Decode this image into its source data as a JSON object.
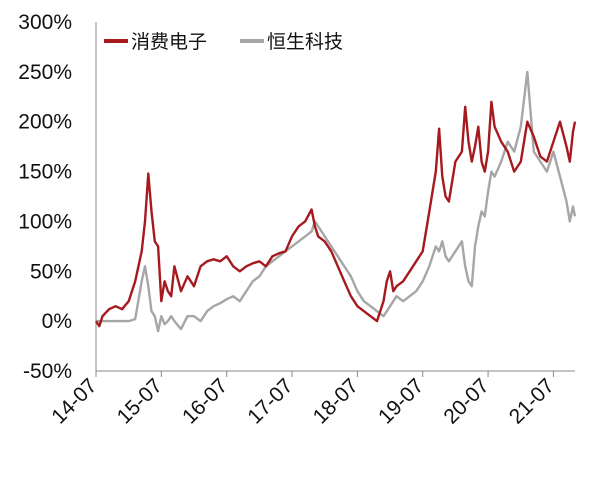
{
  "chart_data": {
    "type": "line",
    "title": "",
    "xlabel": "",
    "ylabel": "",
    "ylim": [
      -50,
      300
    ],
    "yticks": [
      -50,
      0,
      50,
      100,
      150,
      200,
      250,
      300
    ],
    "ytick_labels": [
      "-50%",
      "0%",
      "50%",
      "100%",
      "150%",
      "200%",
      "250%",
      "300%"
    ],
    "xlim": [
      2014.5,
      2021.83
    ],
    "xticks": [
      2014.5,
      2015.5,
      2016.5,
      2017.5,
      2018.5,
      2019.5,
      2020.5,
      2021.5
    ],
    "xtick_labels": [
      "14-07",
      "15-07",
      "16-07",
      "17-07",
      "18-07",
      "19-07",
      "20-07",
      "21-07"
    ],
    "grid": false,
    "legend_position": "top-left",
    "series": [
      {
        "name": "消费电子",
        "color": "#A6191E",
        "x": [
          2014.5,
          2014.55,
          2014.6,
          2014.7,
          2014.8,
          2014.9,
          2015.0,
          2015.1,
          2015.2,
          2015.25,
          2015.3,
          2015.35,
          2015.4,
          2015.45,
          2015.5,
          2015.55,
          2015.6,
          2015.65,
          2015.7,
          2015.8,
          2015.9,
          2016.0,
          2016.1,
          2016.2,
          2016.3,
          2016.4,
          2016.5,
          2016.6,
          2016.7,
          2016.8,
          2016.9,
          2017.0,
          2017.1,
          2017.2,
          2017.3,
          2017.4,
          2017.5,
          2017.6,
          2017.7,
          2017.8,
          2017.85,
          2017.9,
          2018.0,
          2018.1,
          2018.2,
          2018.3,
          2018.4,
          2018.5,
          2018.6,
          2018.7,
          2018.8,
          2018.9,
          2018.95,
          2019.0,
          2019.05,
          2019.1,
          2019.2,
          2019.3,
          2019.4,
          2019.5,
          2019.6,
          2019.7,
          2019.75,
          2019.8,
          2019.85,
          2019.9,
          2020.0,
          2020.1,
          2020.15,
          2020.2,
          2020.25,
          2020.3,
          2020.35,
          2020.4,
          2020.45,
          2020.5,
          2020.55,
          2020.6,
          2020.7,
          2020.8,
          2020.9,
          2021.0,
          2021.1,
          2021.2,
          2021.3,
          2021.4,
          2021.5,
          2021.6,
          2021.7,
          2021.75,
          2021.8,
          2021.83
        ],
        "values": [
          0,
          -5,
          5,
          12,
          15,
          12,
          20,
          40,
          70,
          100,
          148,
          110,
          80,
          75,
          20,
          40,
          30,
          25,
          55,
          30,
          45,
          35,
          55,
          60,
          62,
          60,
          65,
          55,
          50,
          55,
          58,
          60,
          55,
          65,
          68,
          70,
          85,
          95,
          100,
          112,
          95,
          85,
          80,
          70,
          55,
          40,
          25,
          15,
          10,
          5,
          0,
          20,
          40,
          50,
          30,
          35,
          40,
          50,
          60,
          70,
          110,
          150,
          193,
          145,
          125,
          120,
          160,
          170,
          215,
          180,
          160,
          175,
          195,
          160,
          150,
          170,
          220,
          195,
          180,
          170,
          150,
          160,
          200,
          185,
          165,
          160,
          180,
          200,
          175,
          160,
          190,
          200
        ]
      },
      {
        "name": "恒生科技",
        "color": "#A6A6A6",
        "x": [
          2014.5,
          2014.6,
          2014.7,
          2014.8,
          2014.9,
          2015.0,
          2015.1,
          2015.2,
          2015.25,
          2015.3,
          2015.35,
          2015.4,
          2015.45,
          2015.5,
          2015.55,
          2015.6,
          2015.65,
          2015.7,
          2015.8,
          2015.9,
          2016.0,
          2016.1,
          2016.2,
          2016.3,
          2016.4,
          2016.5,
          2016.6,
          2016.7,
          2016.8,
          2016.9,
          2017.0,
          2017.1,
          2017.2,
          2017.3,
          2017.4,
          2017.5,
          2017.6,
          2017.7,
          2017.8,
          2017.85,
          2017.9,
          2018.0,
          2018.1,
          2018.2,
          2018.3,
          2018.4,
          2018.5,
          2018.6,
          2018.7,
          2018.8,
          2018.9,
          2018.95,
          2019.0,
          2019.05,
          2019.1,
          2019.2,
          2019.3,
          2019.4,
          2019.5,
          2019.6,
          2019.7,
          2019.75,
          2019.8,
          2019.85,
          2019.9,
          2020.0,
          2020.1,
          2020.15,
          2020.2,
          2020.25,
          2020.3,
          2020.35,
          2020.4,
          2020.45,
          2020.5,
          2020.55,
          2020.6,
          2020.7,
          2020.8,
          2020.9,
          2021.0,
          2021.1,
          2021.2,
          2021.3,
          2021.4,
          2021.5,
          2021.6,
          2021.7,
          2021.75,
          2021.8,
          2021.83
        ],
        "values": [
          0,
          0,
          0,
          0,
          0,
          0,
          2,
          40,
          55,
          35,
          10,
          5,
          -10,
          5,
          -3,
          0,
          5,
          0,
          -8,
          5,
          5,
          0,
          10,
          15,
          18,
          22,
          25,
          20,
          30,
          40,
          45,
          55,
          60,
          65,
          70,
          75,
          80,
          85,
          90,
          100,
          95,
          85,
          75,
          65,
          55,
          45,
          30,
          20,
          15,
          10,
          5,
          10,
          15,
          20,
          25,
          20,
          25,
          30,
          40,
          55,
          75,
          70,
          80,
          65,
          60,
          70,
          80,
          55,
          40,
          35,
          75,
          95,
          110,
          105,
          130,
          150,
          145,
          160,
          180,
          170,
          195,
          250,
          170,
          160,
          150,
          170,
          145,
          120,
          100,
          115,
          105
        ]
      }
    ]
  }
}
